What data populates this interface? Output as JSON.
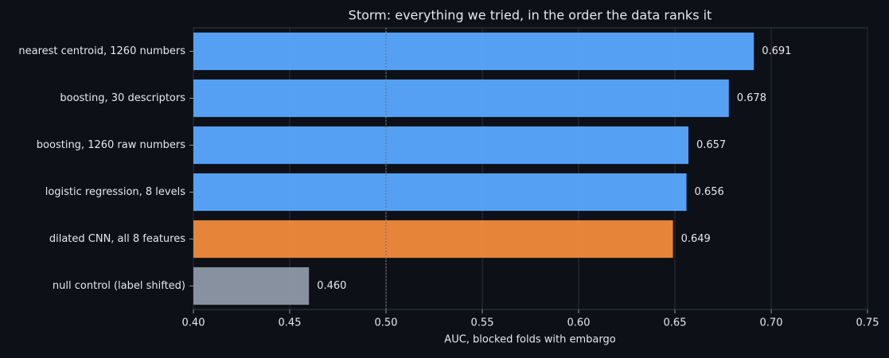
{
  "chart_data": {
    "type": "barh",
    "title": "Storm: everything we tried, in the order the data ranks it",
    "x_label": "AUC, blocked folds with embargo",
    "categories": [
      "nearest centroid, 1260 numbers",
      "boosting, 30 descriptors",
      "boosting, 1260 raw numbers",
      "logistic regression, 8 levels",
      "dilated CNN, all 8 features",
      "null control (label shifted)"
    ],
    "values": [
      0.691,
      0.678,
      0.657,
      0.656,
      0.649,
      0.46
    ],
    "value_labels": [
      "0.691",
      "0.678",
      "0.657",
      "0.656",
      "0.649",
      "0.460"
    ],
    "colors": [
      "#5aa9ff",
      "#5aa9ff",
      "#5aa9ff",
      "#5aa9ff",
      "#f28c3c",
      "#8e99a6"
    ],
    "xlim": [
      0.4,
      0.75
    ],
    "xticks": [
      {
        "value": 0.4,
        "label": "0.40"
      },
      {
        "value": 0.45,
        "label": "0.45"
      },
      {
        "value": 0.5,
        "label": "0.50"
      },
      {
        "value": 0.55,
        "label": "0.55"
      },
      {
        "value": 0.6,
        "label": "0.60"
      },
      {
        "value": 0.65,
        "label": "0.65"
      },
      {
        "value": 0.7,
        "label": "0.70"
      },
      {
        "value": 0.75,
        "label": "0.75"
      }
    ],
    "reference_line": 0.5,
    "grid": true
  }
}
